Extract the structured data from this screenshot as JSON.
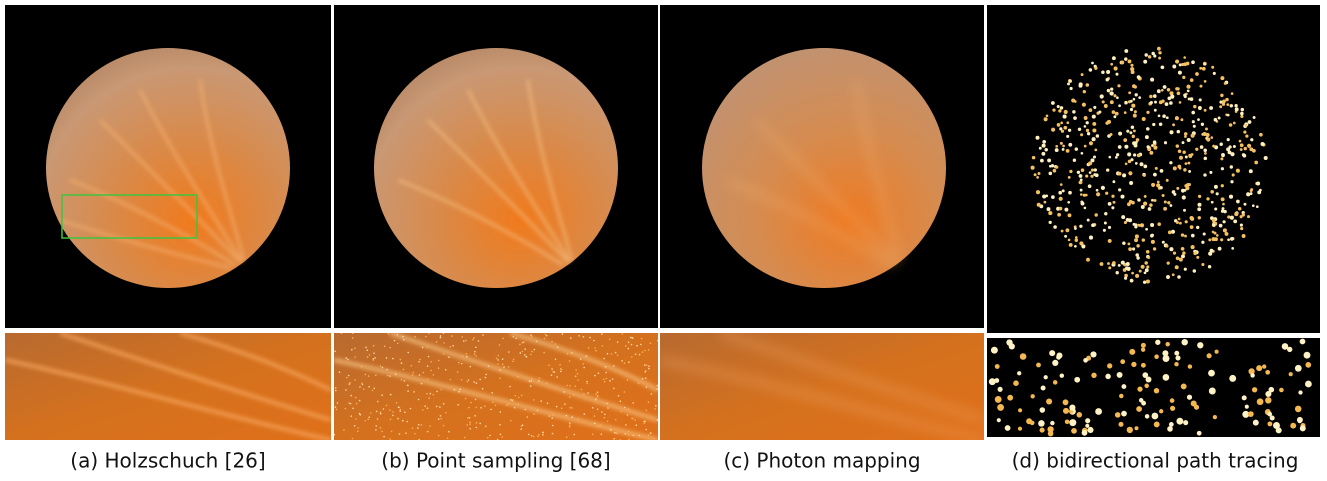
{
  "figure": {
    "panels": [
      {
        "caption": "(a) Holzschuch [26]"
      },
      {
        "caption": "(b) Point sampling [68]"
      },
      {
        "caption": "(c) Photon mapping"
      },
      {
        "caption": "(d) bidirectional path tracing"
      }
    ]
  }
}
